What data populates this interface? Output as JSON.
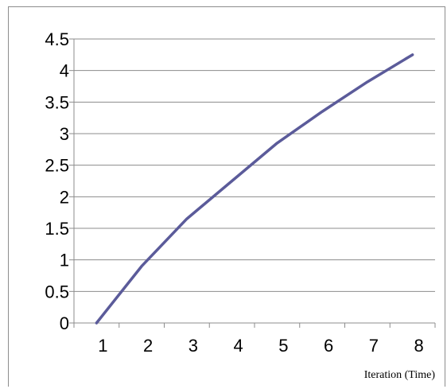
{
  "chart_data": {
    "type": "line",
    "title": "",
    "xlabel": "Iteration (Time)",
    "ylabel": "",
    "x": [
      1,
      2,
      3,
      4,
      5,
      6,
      7,
      8
    ],
    "series": [
      {
        "values": [
          0,
          0.9,
          1.65,
          2.25,
          2.85,
          3.35,
          3.82,
          4.25
        ],
        "color": "#5b5b9a"
      }
    ],
    "ylim": [
      0,
      4.5
    ],
    "yticks": [
      "0",
      "0.5",
      "1",
      "1.5",
      "2",
      "2.5",
      "3",
      "3.5",
      "4",
      "4.5"
    ],
    "xticks": [
      "1",
      "2",
      "3",
      "4",
      "5",
      "6",
      "7",
      "8"
    ],
    "grid": true,
    "legend": "none"
  }
}
